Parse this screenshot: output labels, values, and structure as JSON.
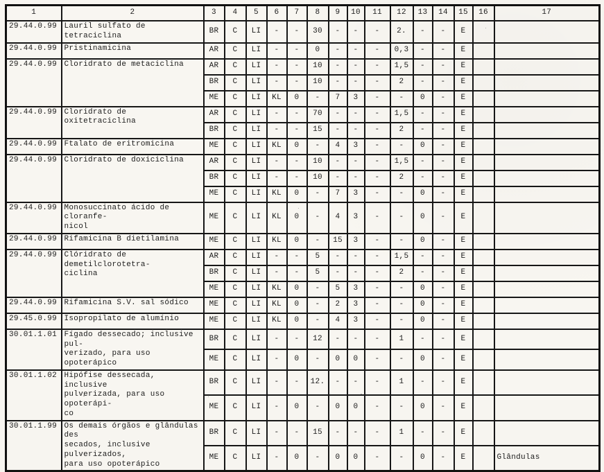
{
  "table": {
    "headers": [
      "1",
      "2",
      "3",
      "4",
      "5",
      "6",
      "7",
      "8",
      "9",
      "10",
      "11",
      "12",
      "13",
      "14",
      "15",
      "16",
      "17"
    ],
    "groups": [
      {
        "code": "29.44.0.99",
        "name": "Lauril sulfato de tetraciclina",
        "rows": [
          [
            "BR",
            "C",
            "LI",
            "-",
            "-",
            "30",
            "-",
            "-",
            "-",
            "2.",
            "-",
            "-",
            "E",
            "",
            ""
          ]
        ]
      },
      {
        "code": "29.44.0.99",
        "name": "Pristinamicina",
        "rows": [
          [
            "AR",
            "C",
            "LI",
            "-",
            "-",
            "0",
            "-",
            "-",
            "-",
            "0,3",
            "-",
            "-",
            "E",
            "",
            ""
          ]
        ]
      },
      {
        "code": "29.44.0.99",
        "name": "Cloridrato de metaciclina",
        "rows": [
          [
            "AR",
            "C",
            "LI",
            "-",
            "-",
            "10",
            "-",
            "-",
            "-",
            "1,5",
            "-",
            "-",
            "E",
            "",
            ""
          ],
          [
            "BR",
            "C",
            "LI",
            "-",
            "-",
            "10",
            "-",
            "-",
            "-",
            "2",
            "-",
            "-",
            "E",
            "",
            ""
          ],
          [
            "ME",
            "C",
            "LI",
            "KL",
            "0",
            "-",
            "7",
            "3",
            "-",
            "-",
            "0",
            "-",
            "E",
            "",
            ""
          ]
        ]
      },
      {
        "code": "29.44.0.99",
        "name": "Cloridrato de oxitetraciclina",
        "rows": [
          [
            "AR",
            "C",
            "LI",
            "-",
            "-",
            "70",
            "-",
            "-",
            "-",
            "1,5",
            "-",
            "-",
            "E",
            "",
            ""
          ],
          [
            "BR",
            "C",
            "LI",
            "-",
            "-",
            "15",
            "-",
            "-",
            "-",
            "2",
            "-",
            "-",
            "E",
            "",
            ""
          ]
        ]
      },
      {
        "code": "29.44.0.99",
        "name": "Ftalato de eritromicina",
        "rows": [
          [
            "ME",
            "C",
            "LI",
            "KL",
            "0",
            "-",
            "4",
            "3",
            "-",
            "-",
            "0",
            "-",
            "E",
            "",
            ""
          ]
        ]
      },
      {
        "code": "29.44.0.99",
        "name": "Cloridrato de doxiciclina",
        "rows": [
          [
            "AR",
            "C",
            "LI",
            "-",
            "-",
            "10",
            "-",
            "-",
            "-",
            "1,5",
            "-",
            "-",
            "E",
            "",
            ""
          ],
          [
            "BR",
            "C",
            "LI",
            "-",
            "-",
            "10",
            "-",
            "-",
            "-",
            "2",
            "-",
            "-",
            "E",
            "",
            ""
          ],
          [
            "ME",
            "C",
            "LI",
            "KL",
            "0",
            "-",
            "7",
            "3",
            "-",
            "-",
            "0",
            "-",
            "E",
            "",
            ""
          ]
        ]
      },
      {
        "code": "29.44.0.99",
        "name": "Monosuccinato ácido de cloranfe-\nnicol",
        "rows": [
          [
            "ME",
            "C",
            "LI",
            "KL",
            "0",
            "-",
            "4",
            "3",
            "-",
            "-",
            "0",
            "-",
            "E",
            "",
            ""
          ]
        ]
      },
      {
        "code": "29.44.0.99",
        "name": "Rifamicina B dietilamina",
        "rows": [
          [
            "ME",
            "C",
            "LI",
            "KL",
            "0",
            "-",
            "15",
            "3",
            "-",
            "-",
            "0",
            "-",
            "E",
            "",
            ""
          ]
        ]
      },
      {
        "code": "29.44.0.99",
        "name": "Clóridrato de demetilclorotetra-\nciclina",
        "rows": [
          [
            "AR",
            "C",
            "LI",
            "-",
            "-",
            "5",
            "-",
            "-",
            "-",
            "1,5",
            "-",
            "-",
            "E",
            "",
            ""
          ],
          [
            "BR",
            "C",
            "LI",
            "-",
            "-",
            "5",
            "-",
            "-",
            "-",
            "2",
            "-",
            "-",
            "E",
            "",
            ""
          ],
          [
            "ME",
            "C",
            "LI",
            "KL",
            "0",
            "-",
            "5",
            "3",
            "-",
            "-",
            "0",
            "-",
            "E",
            "",
            ""
          ]
        ]
      },
      {
        "code": "29.44.0.99",
        "name": "Rifamicina S.V. sal sódico",
        "rows": [
          [
            "ME",
            "C",
            "LI",
            "KL",
            "0",
            "-",
            "2",
            "3",
            "-",
            "-",
            "0",
            "-",
            "E",
            "",
            ""
          ]
        ]
      },
      {
        "code": "29.45.0.99",
        "name": "Isopropilato de alumínio",
        "rows": [
          [
            "ME",
            "C",
            "LI",
            "KL",
            "0",
            "-",
            "4",
            "3",
            "-",
            "-",
            "0",
            "-",
            "E",
            "",
            ""
          ]
        ]
      },
      {
        "code": "30.01.1.01",
        "name": "Fígado dessecado; inclusive pul-\nverizado, para uso opoterápico",
        "rows": [
          [
            "BR",
            "C",
            "LI",
            "-",
            "-",
            "12",
            "-",
            "-",
            "-",
            "1",
            "-",
            "-",
            "E",
            "",
            ""
          ],
          [
            "ME",
            "C",
            "LI",
            "-",
            "0",
            "-",
            "0",
            "0",
            "-",
            "-",
            "0",
            "-",
            "E",
            "",
            ""
          ]
        ]
      },
      {
        "code": "30.01.1.02",
        "name": "Hipófise dessecada, inclusive\npulverizada, para uso opoterápi-\nco",
        "rows": [
          [
            "BR",
            "C",
            "LI",
            "-",
            "-",
            "12.",
            "-",
            "-",
            "-",
            "1",
            "-",
            "-",
            "E",
            "",
            ""
          ],
          [
            "ME",
            "C",
            "LI",
            "-",
            "0",
            "-",
            "0",
            "0",
            "-",
            "-",
            "0",
            "-",
            "E",
            "",
            ""
          ]
        ]
      },
      {
        "code": "30.01.1.99",
        "name": "Os demais órgãos e glândulas des\nsecados, inclusive pulverizados,\npara uso opoterápico",
        "rows": [
          [
            "BR",
            "C",
            "LI",
            "-",
            "-",
            "15",
            "-",
            "-",
            "-",
            "1",
            "-",
            "-",
            "E",
            "",
            ""
          ],
          [
            "ME",
            "C",
            "LI",
            "-",
            "0",
            "-",
            "0",
            "0",
            "-",
            "-",
            "0",
            "-",
            "E",
            "",
            "Glândulas"
          ]
        ]
      }
    ]
  }
}
